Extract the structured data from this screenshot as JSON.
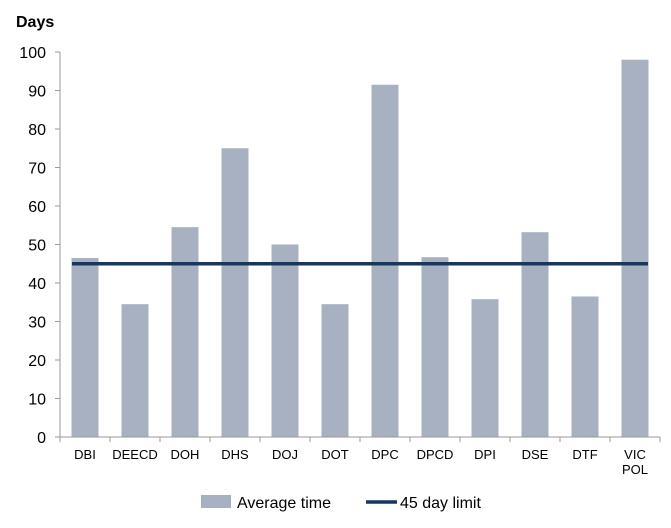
{
  "chart_data": {
    "type": "bar",
    "ylabel": "Days",
    "ylim": [
      0,
      100
    ],
    "yticks": [
      "0",
      "10",
      "20",
      "30",
      "40",
      "50",
      "60",
      "70",
      "80",
      "90",
      "100"
    ],
    "categories": [
      "DBI",
      "DEECD",
      "DOH",
      "DHS",
      "DOJ",
      "DOT",
      "DPC",
      "DPCD",
      "DPI",
      "DSE",
      "DTF",
      "VIC POL"
    ],
    "series": [
      {
        "name": "Average time",
        "type": "bar",
        "color": "#a8b1c2",
        "values": [
          46.5,
          34.5,
          54.5,
          75,
          50,
          34.5,
          91.5,
          46.7,
          35.8,
          53.2,
          36.5,
          98
        ]
      },
      {
        "name": "45 day limit",
        "type": "line",
        "color": "#17375e",
        "values": [
          45,
          45,
          45,
          45,
          45,
          45,
          45,
          45,
          45,
          45,
          45,
          45
        ]
      }
    ],
    "legend_position": "bottom",
    "grid": false
  }
}
